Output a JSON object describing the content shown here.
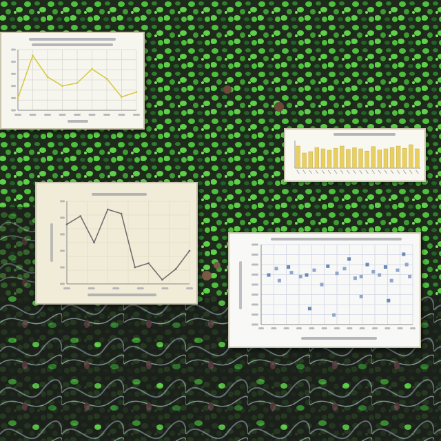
{
  "colors": {
    "leaf_bright": "#5fd04a",
    "leaf_mid": "#3e9a34",
    "leaf_dark": "#24602a",
    "soil": "#2a2320",
    "mark_yellow": "#d8c94a",
    "mark_bar": "#e8cf62",
    "mark_gray": "#6f6f6f",
    "mark_blue": "#6a88b8",
    "grid": "#cfd6e6"
  },
  "charts": [
    {
      "id": "line-small",
      "type": "line",
      "title": "",
      "x_ticks": 9,
      "values": [
        0.2,
        0.9,
        0.55,
        0.4,
        0.45,
        0.68,
        0.52,
        0.22,
        0.3
      ],
      "ylim": [
        0,
        1
      ]
    },
    {
      "id": "bar",
      "type": "bar",
      "title": "",
      "values": [
        0.8,
        0.55,
        0.6,
        0.75,
        0.7,
        0.65,
        0.72,
        0.8,
        0.68,
        0.74,
        0.7,
        0.62,
        0.78,
        0.66,
        0.7,
        0.75,
        0.8,
        0.72,
        0.85,
        0.7
      ],
      "ylim": [
        0,
        1
      ]
    },
    {
      "id": "line-large",
      "type": "line",
      "title": "",
      "x_ticks": 6,
      "values": [
        0.72,
        0.82,
        0.5,
        0.9,
        0.85,
        0.2,
        0.25,
        0.05,
        0.18,
        0.4
      ],
      "ylim": [
        0,
        1
      ]
    },
    {
      "id": "scatter",
      "type": "scatter",
      "title": "",
      "points": [
        [
          0.05,
          0.62
        ],
        [
          0.1,
          0.7
        ],
        [
          0.12,
          0.55
        ],
        [
          0.18,
          0.72
        ],
        [
          0.2,
          0.65
        ],
        [
          0.26,
          0.6
        ],
        [
          0.3,
          0.62
        ],
        [
          0.35,
          0.68
        ],
        [
          0.4,
          0.5
        ],
        [
          0.44,
          0.73
        ],
        [
          0.5,
          0.64
        ],
        [
          0.55,
          0.7
        ],
        [
          0.58,
          0.82
        ],
        [
          0.62,
          0.58
        ],
        [
          0.66,
          0.6
        ],
        [
          0.7,
          0.75
        ],
        [
          0.74,
          0.66
        ],
        [
          0.78,
          0.62
        ],
        [
          0.82,
          0.72
        ],
        [
          0.86,
          0.55
        ],
        [
          0.9,
          0.68
        ],
        [
          0.94,
          0.88
        ],
        [
          0.96,
          0.75
        ],
        [
          0.98,
          0.6
        ],
        [
          0.32,
          0.2
        ],
        [
          0.48,
          0.12
        ],
        [
          0.66,
          0.35
        ],
        [
          0.84,
          0.3
        ]
      ],
      "xlim": [
        0,
        1
      ],
      "ylim": [
        0,
        1
      ]
    }
  ]
}
